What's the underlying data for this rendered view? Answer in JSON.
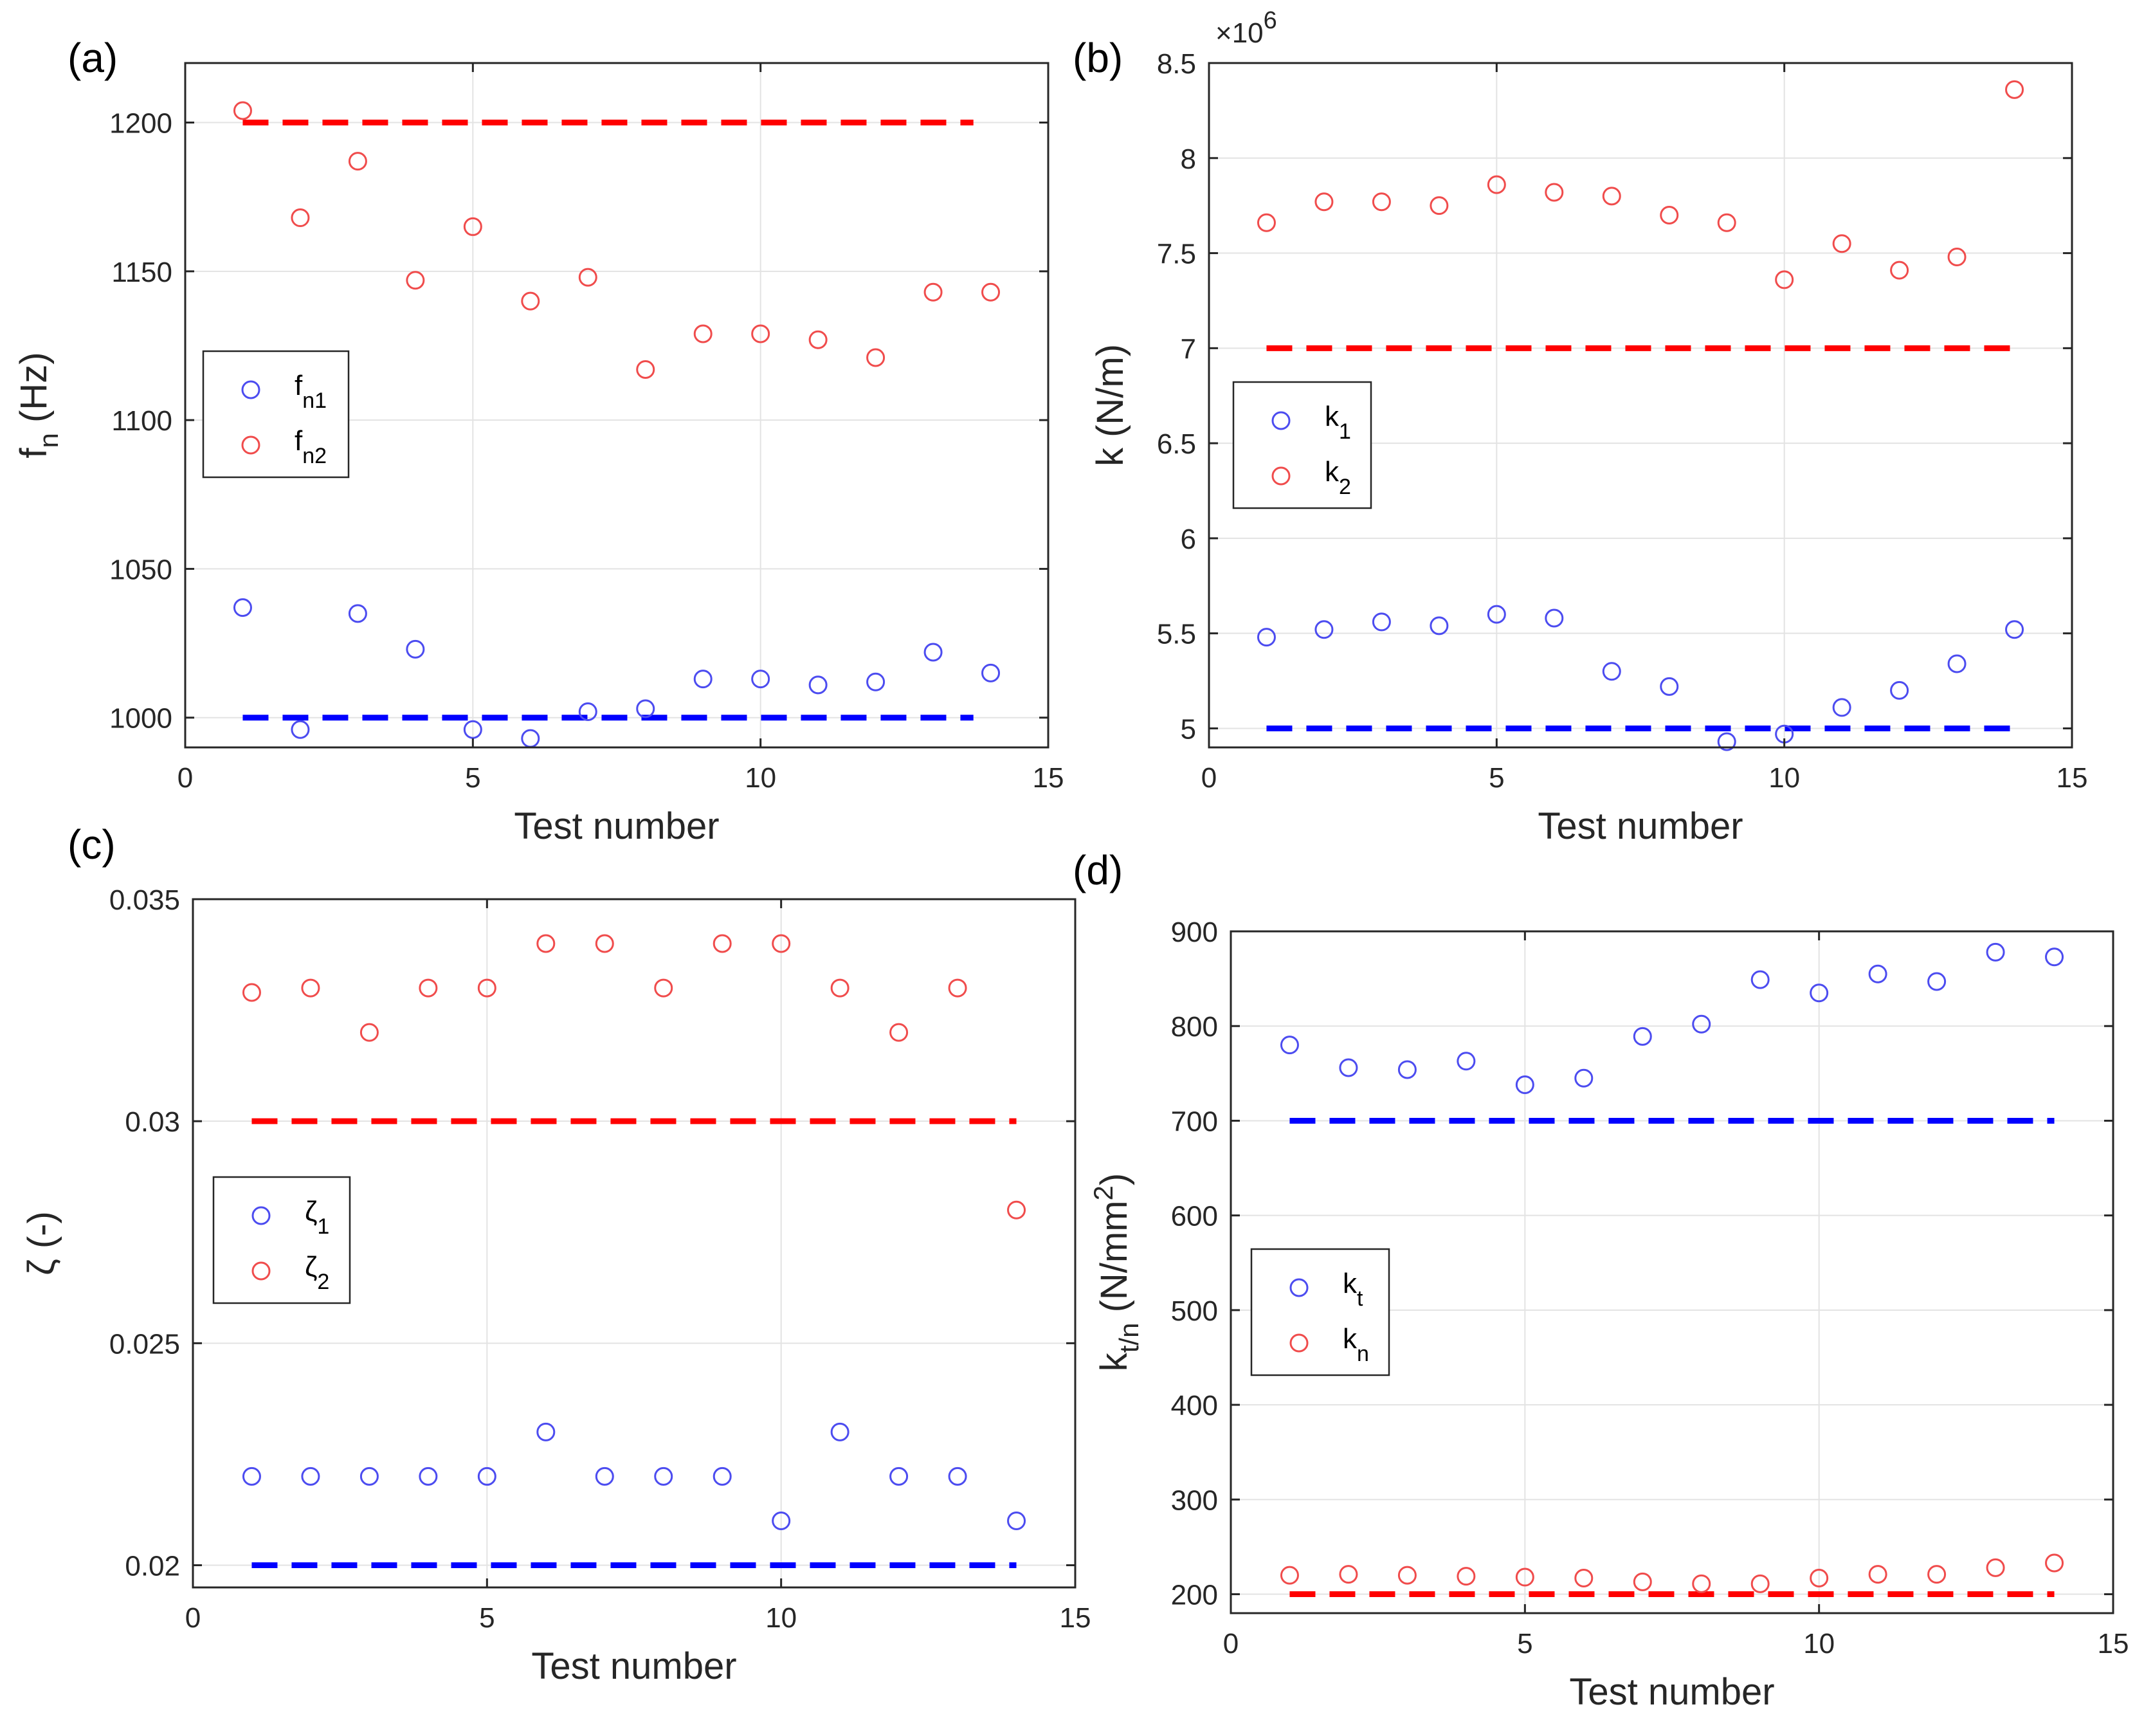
{
  "chart_data": [
    {
      "type": "scatter",
      "panel_label": "(a)",
      "xlabel": "Test number",
      "ylabel_main": "f",
      "ylabel_sub": "n",
      "ylabel_rest": " (Hz)",
      "exponent_label": "",
      "xlim": [
        0,
        15
      ],
      "ylim": [
        990,
        1220
      ],
      "xticks": [
        0,
        5,
        10,
        15
      ],
      "xtick_labels": [
        "0",
        "5",
        "10",
        "15"
      ],
      "yticks": [
        1000,
        1050,
        1100,
        1150,
        1200
      ],
      "ytick_labels": [
        "1000",
        "1050",
        "1100",
        "1150",
        "1200"
      ],
      "grid": true,
      "legend": [
        {
          "main": "f",
          "sub": "n1",
          "color": "#4c4cf0"
        },
        {
          "main": "f",
          "sub": "n2",
          "color": "#f04c4c"
        }
      ],
      "series": [
        {
          "name": "fn1",
          "color": "#4c4cf0",
          "x": [
            1,
            2,
            3,
            4,
            5,
            6,
            7,
            8,
            9,
            10,
            11,
            12,
            13,
            14
          ],
          "values": [
            1037,
            996,
            1035,
            1023,
            996,
            993,
            1002,
            1003,
            1013,
            1013,
            1011,
            1012,
            1022,
            1015
          ]
        },
        {
          "name": "fn2",
          "color": "#f04c4c",
          "x": [
            1,
            2,
            3,
            4,
            5,
            6,
            7,
            8,
            9,
            10,
            11,
            12,
            13,
            14
          ],
          "values": [
            1204,
            1168,
            1187,
            1147,
            1165,
            1140,
            1148,
            1117,
            1129,
            1129,
            1127,
            1121,
            1143,
            1143
          ]
        }
      ],
      "reference_lines": [
        {
          "y": 1000,
          "x": [
            1,
            13.7
          ],
          "color": "#0000ff"
        },
        {
          "y": 1200,
          "x": [
            1,
            13.7
          ],
          "color": "#ff0000"
        }
      ]
    },
    {
      "type": "scatter",
      "panel_label": "(b)",
      "xlabel": "Test number",
      "ylabel_main": "k (N/m)",
      "ylabel_sub": "",
      "ylabel_rest": "",
      "exponent_label": "×10",
      "exponent_power": "6",
      "xlim": [
        0,
        15
      ],
      "ylim": [
        4.9,
        8.5
      ],
      "xticks": [
        0,
        5,
        10,
        15
      ],
      "xtick_labels": [
        "0",
        "5",
        "10",
        "15"
      ],
      "yticks": [
        5,
        5.5,
        6,
        6.5,
        7,
        7.5,
        8,
        8.5
      ],
      "ytick_labels": [
        "5",
        "5.5",
        "6",
        "6.5",
        "7",
        "7.5",
        "8",
        "8.5"
      ],
      "grid": true,
      "legend": [
        {
          "main": "k",
          "sub": "1",
          "color": "#4c4cf0"
        },
        {
          "main": "k",
          "sub": "2",
          "color": "#f04c4c"
        }
      ],
      "series": [
        {
          "name": "k1",
          "color": "#4c4cf0",
          "x": [
            1,
            2,
            3,
            4,
            5,
            6,
            7,
            8,
            9,
            10,
            11,
            12,
            13,
            14
          ],
          "values": [
            5.48,
            5.52,
            5.56,
            5.54,
            5.6,
            5.58,
            5.3,
            5.22,
            4.93,
            4.97,
            5.11,
            5.2,
            5.34,
            5.52
          ]
        },
        {
          "name": "k2",
          "color": "#f04c4c",
          "x": [
            1,
            2,
            3,
            4,
            5,
            6,
            7,
            8,
            9,
            10,
            11,
            12,
            13,
            14
          ],
          "values": [
            7.66,
            7.77,
            7.77,
            7.75,
            7.86,
            7.82,
            7.8,
            7.7,
            7.66,
            7.36,
            7.55,
            7.41,
            7.48,
            8.36
          ]
        }
      ],
      "reference_lines": [
        {
          "y": 5,
          "x": [
            1,
            14
          ],
          "color": "#0000ff"
        },
        {
          "y": 7,
          "x": [
            1,
            14
          ],
          "color": "#ff0000"
        }
      ]
    },
    {
      "type": "scatter",
      "panel_label": "(c)",
      "xlabel": "Test number",
      "ylabel_main": "ζ (-)",
      "ylabel_sub": "",
      "ylabel_rest": "",
      "exponent_label": "",
      "xlim": [
        0,
        15
      ],
      "ylim": [
        0.0195,
        0.035
      ],
      "xticks": [
        0,
        5,
        10,
        15
      ],
      "xtick_labels": [
        "0",
        "5",
        "10",
        "15"
      ],
      "yticks": [
        0.02,
        0.025,
        0.03,
        0.035
      ],
      "ytick_labels": [
        "0.02",
        "0.025",
        "0.03",
        "0.035"
      ],
      "grid": true,
      "legend": [
        {
          "main": "ζ",
          "sub": "1",
          "color": "#4c4cf0"
        },
        {
          "main": "ζ",
          "sub": "2",
          "color": "#f04c4c"
        }
      ],
      "series": [
        {
          "name": "zeta1",
          "color": "#4c4cf0",
          "x": [
            1,
            2,
            3,
            4,
            5,
            6,
            7,
            8,
            9,
            10,
            11,
            12,
            13,
            14
          ],
          "values": [
            0.022,
            0.022,
            0.022,
            0.022,
            0.022,
            0.023,
            0.022,
            0.022,
            0.022,
            0.021,
            0.023,
            0.022,
            0.022,
            0.021
          ]
        },
        {
          "name": "zeta2",
          "color": "#f04c4c",
          "x": [
            1,
            2,
            3,
            4,
            5,
            6,
            7,
            8,
            9,
            10,
            11,
            12,
            13,
            14
          ],
          "values": [
            0.0329,
            0.033,
            0.032,
            0.033,
            0.033,
            0.034,
            0.034,
            0.033,
            0.034,
            0.034,
            0.033,
            0.032,
            0.033,
            0.028
          ]
        }
      ],
      "reference_lines": [
        {
          "y": 0.02,
          "x": [
            1,
            14
          ],
          "color": "#0000ff"
        },
        {
          "y": 0.03,
          "x": [
            1,
            14
          ],
          "color": "#ff0000"
        }
      ]
    },
    {
      "type": "scatter",
      "panel_label": "(d)",
      "xlabel": "Test number",
      "ylabel_main": "k",
      "ylabel_sub": "t/n",
      "ylabel_rest": " (N/mm",
      "ylabel_sup": "2",
      "ylabel_end": ")",
      "exponent_label": "",
      "xlim": [
        0,
        15
      ],
      "ylim": [
        180,
        900
      ],
      "xticks": [
        0,
        5,
        10,
        15
      ],
      "xtick_labels": [
        "0",
        "5",
        "10",
        "15"
      ],
      "yticks": [
        200,
        300,
        400,
        500,
        600,
        700,
        800,
        900
      ],
      "ytick_labels": [
        "200",
        "300",
        "400",
        "500",
        "600",
        "700",
        "800",
        "900"
      ],
      "grid": true,
      "legend": [
        {
          "main": "k",
          "sub": "t",
          "color": "#4c4cf0"
        },
        {
          "main": "k",
          "sub": "n",
          "color": "#f04c4c"
        }
      ],
      "series": [
        {
          "name": "kt",
          "color": "#4c4cf0",
          "x": [
            1,
            2,
            3,
            4,
            5,
            6,
            7,
            8,
            9,
            10,
            11,
            12,
            13,
            14
          ],
          "values": [
            780,
            756,
            754,
            763,
            738,
            745,
            789,
            802,
            849,
            835,
            855,
            847,
            878,
            873
          ]
        },
        {
          "name": "kn",
          "color": "#f04c4c",
          "x": [
            1,
            2,
            3,
            4,
            5,
            6,
            7,
            8,
            9,
            10,
            11,
            12,
            13,
            14
          ],
          "values": [
            220,
            221,
            220,
            219,
            218,
            217,
            213,
            211,
            211,
            217,
            221,
            221,
            228,
            233
          ]
        }
      ],
      "reference_lines": [
        {
          "y": 700,
          "x": [
            1,
            14
          ],
          "color": "#0000ff"
        },
        {
          "y": 200,
          "x": [
            1,
            14
          ],
          "color": "#ff0000"
        }
      ]
    }
  ]
}
